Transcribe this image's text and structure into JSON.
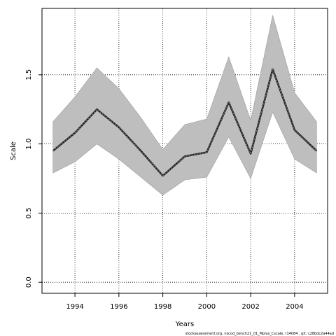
{
  "chart_data": {
    "type": "line",
    "xlabel": "Years",
    "ylabel": "Scale",
    "footer": "stockassessment.org, nscod_bench21_01_Mplus_Cscale, r14084 , git: c28bdc2a44ad",
    "xlim": [
      1992.5,
      2005.5
    ],
    "ylim": [
      -0.08,
      1.98
    ],
    "x_ticks": [
      1994,
      1996,
      1998,
      2000,
      2002,
      2004
    ],
    "y_ticks": [
      0.0,
      0.5,
      1.0,
      1.5
    ],
    "y_tick_labels": [
      "0.0",
      "0.5",
      "1.0",
      "1.5"
    ],
    "grid": true,
    "grid_style": "dotted",
    "x": [
      1993,
      1994,
      1995,
      1996,
      1997,
      1998,
      1999,
      2000,
      2001,
      2002,
      2003,
      2004,
      2005
    ],
    "estimate": [
      0.95,
      1.08,
      1.25,
      1.12,
      0.95,
      0.77,
      0.91,
      0.94,
      1.3,
      0.93,
      1.54,
      1.1,
      0.95
    ],
    "lower": [
      0.79,
      0.87,
      1.0,
      0.89,
      0.76,
      0.63,
      0.74,
      0.76,
      1.05,
      0.75,
      1.23,
      0.89,
      0.79
    ],
    "upper": [
      1.16,
      1.34,
      1.55,
      1.4,
      1.19,
      0.96,
      1.14,
      1.18,
      1.63,
      1.17,
      1.93,
      1.37,
      1.16
    ],
    "band_color": "#bebebe",
    "line_color": "#222222"
  }
}
